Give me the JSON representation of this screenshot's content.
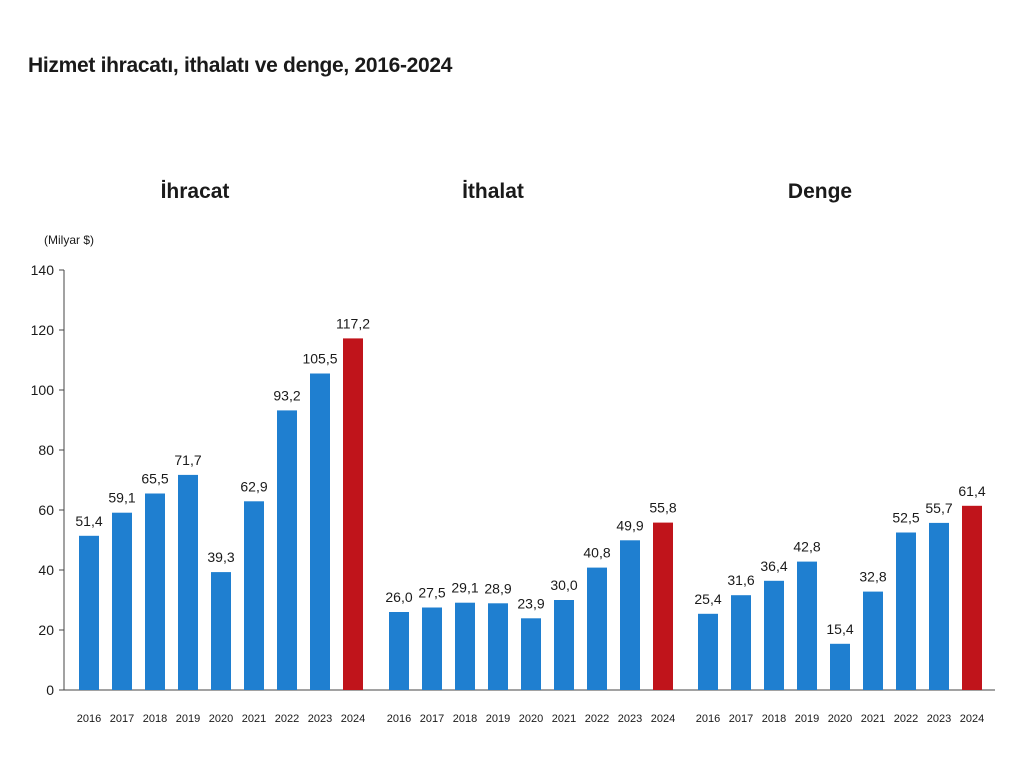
{
  "title": "Hizmet ihracatı, ithalatı ve denge, 2016-2024",
  "unit_label": "(Milyar $)",
  "colors": {
    "bar": "#1f7fd0",
    "highlight": "#c0141b",
    "axis": "#444444",
    "text": "#1a1a1a"
  },
  "chart_data": {
    "type": "bar",
    "title": "Hizmet ihracatı, ithalatı ve denge, 2016-2024",
    "ylabel": "(Milyar $)",
    "ylim": [
      0,
      140
    ],
    "yticks": [
      0,
      20,
      40,
      60,
      80,
      100,
      120,
      140
    ],
    "categories": [
      "2016",
      "2017",
      "2018",
      "2019",
      "2020",
      "2021",
      "2022",
      "2023",
      "2024"
    ],
    "highlight_category": "2024",
    "panels": [
      {
        "name": "İhracat",
        "values": [
          51.4,
          59.1,
          65.5,
          71.7,
          39.3,
          62.9,
          93.2,
          105.5,
          117.2
        ],
        "labels": [
          "51,4",
          "59,1",
          "65,5",
          "71,7",
          "39,3",
          "62,9",
          "93,2",
          "105,5",
          "117,2"
        ]
      },
      {
        "name": "İthalat",
        "values": [
          26.0,
          27.5,
          29.1,
          28.9,
          23.9,
          30.0,
          40.8,
          49.9,
          55.8
        ],
        "labels": [
          "26,0",
          "27,5",
          "29,1",
          "28,9",
          "23,9",
          "30,0",
          "40,8",
          "49,9",
          "55,8"
        ]
      },
      {
        "name": "Denge",
        "values": [
          25.4,
          31.6,
          36.4,
          42.8,
          15.4,
          32.8,
          52.5,
          55.7,
          61.4
        ],
        "labels": [
          "25,4",
          "31,6",
          "36,4",
          "42,8",
          "15,4",
          "32,8",
          "52,5",
          "55,7",
          "61,4"
        ]
      }
    ]
  }
}
